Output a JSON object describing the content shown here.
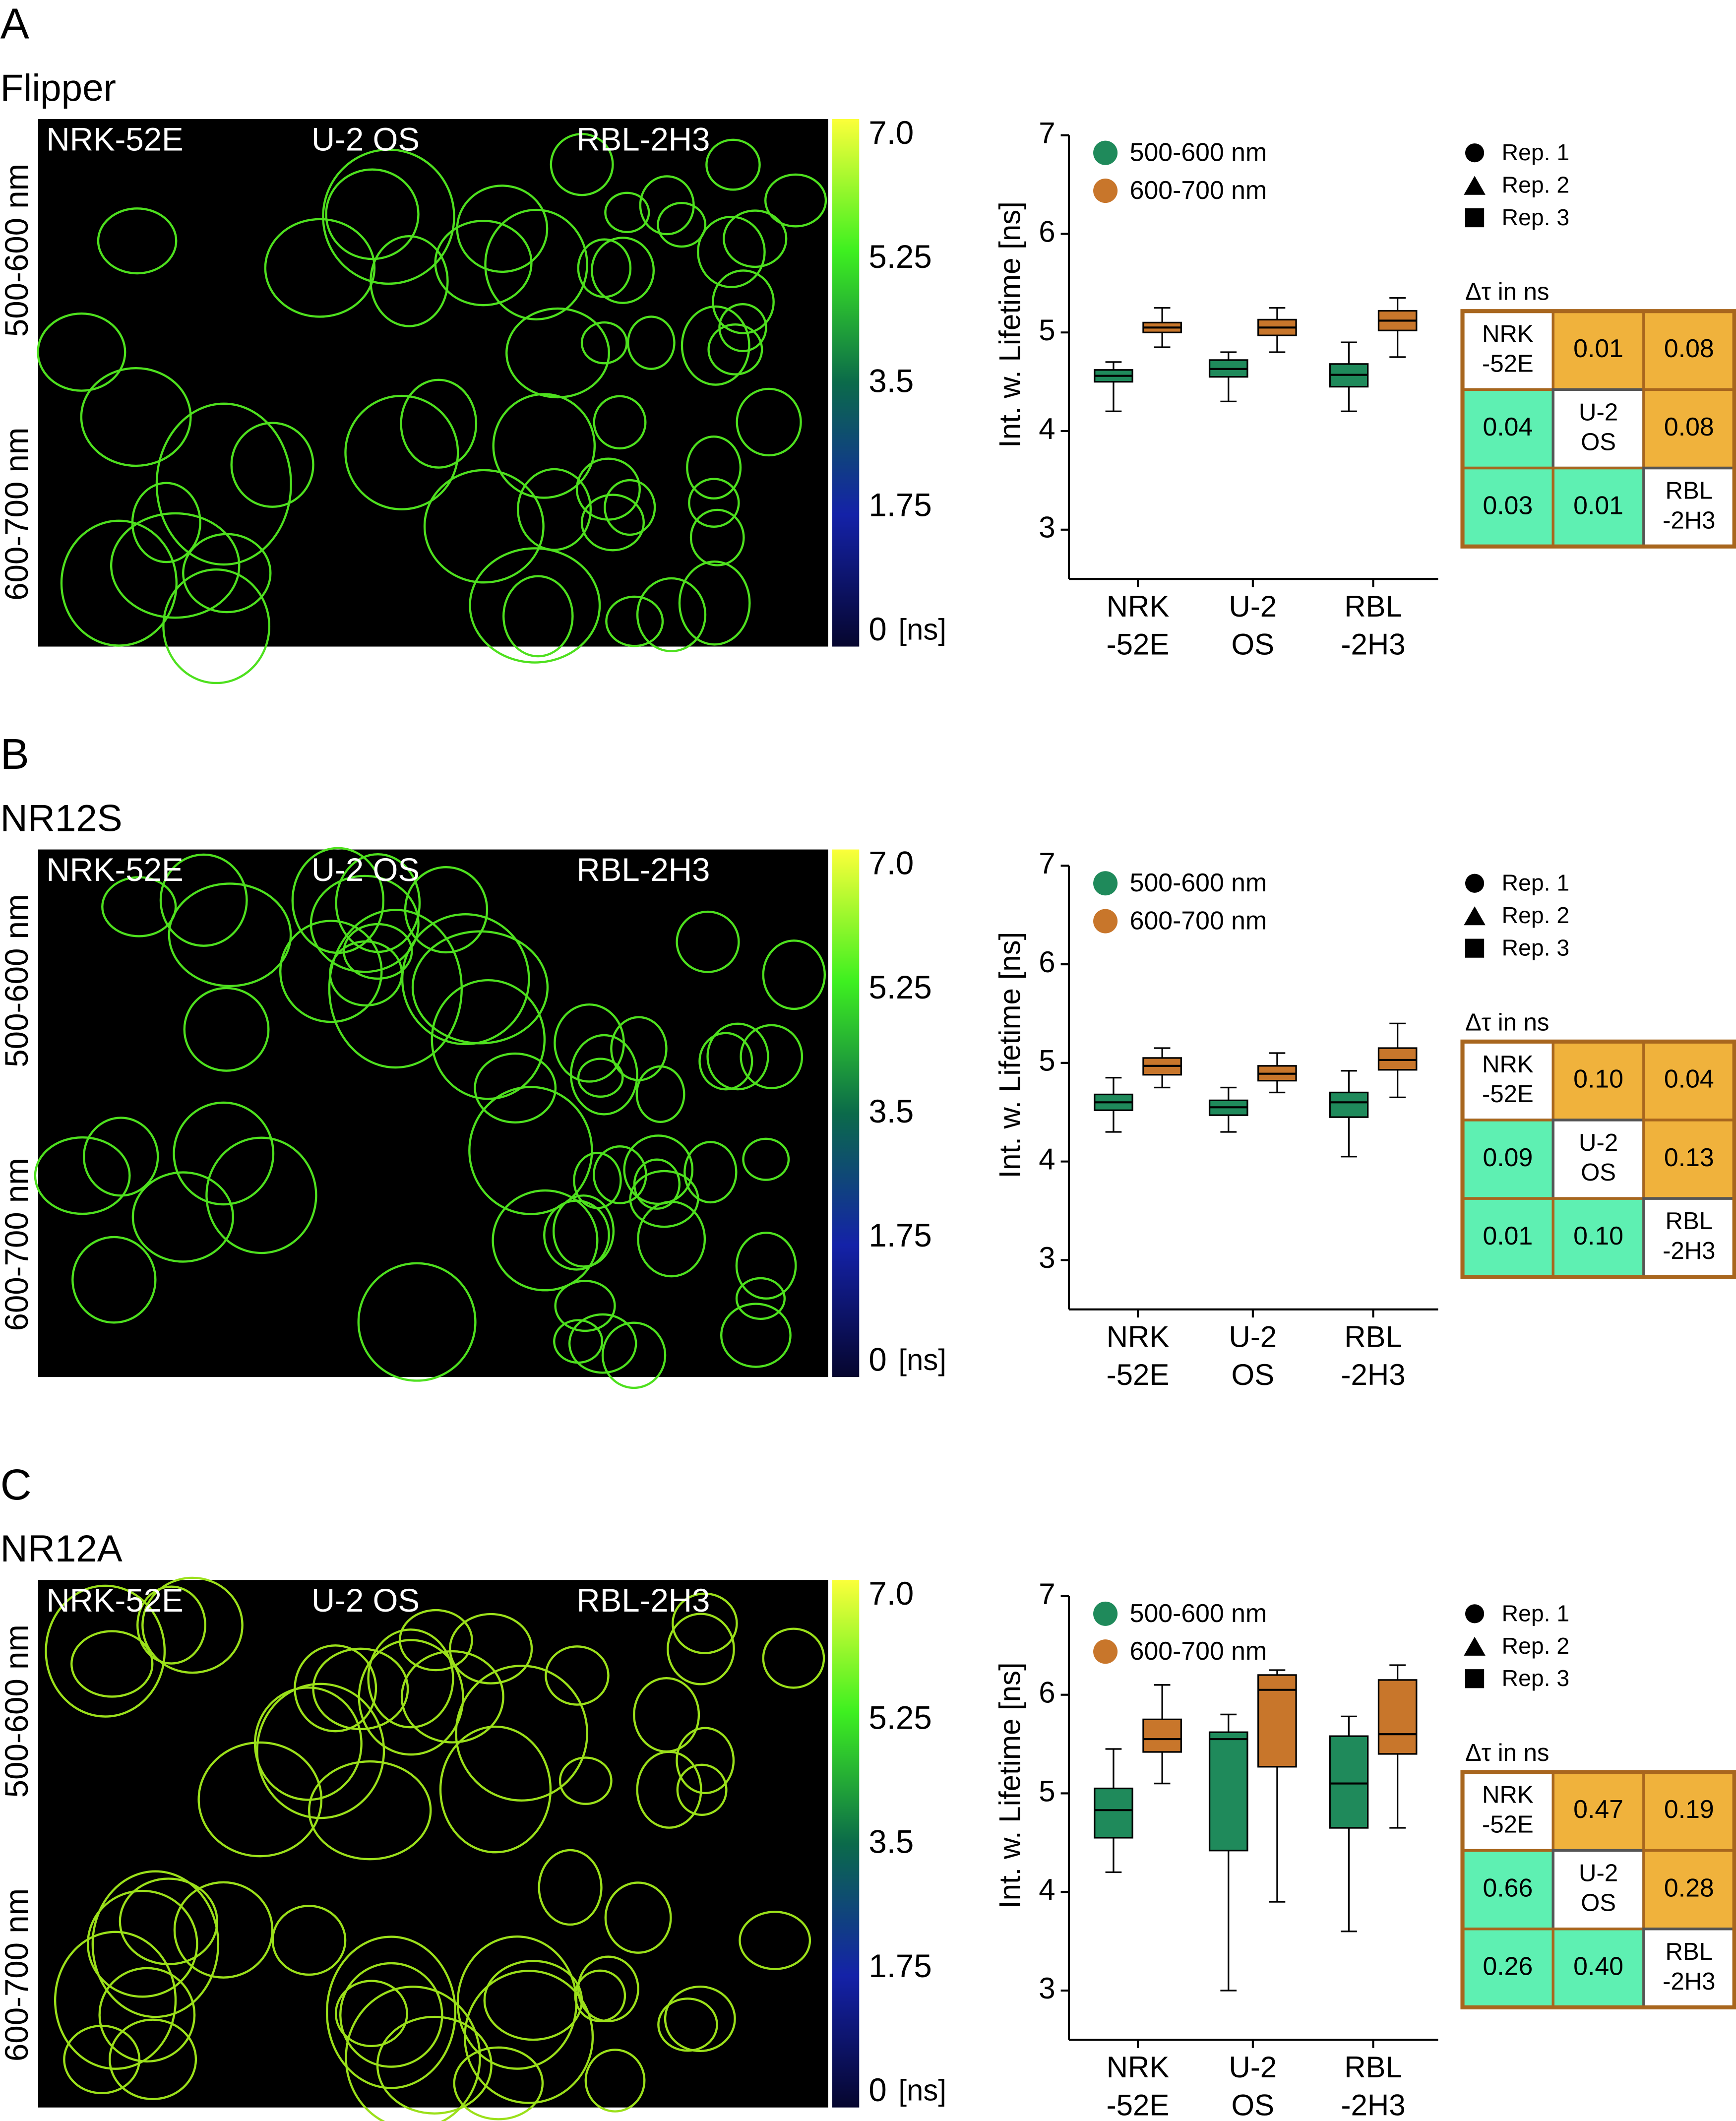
{
  "panels": [
    {
      "label": "A",
      "dye": "Flipper",
      "image": {
        "cell_lines": [
          "NRK-52E",
          "U-2 OS",
          "RBL-2H3"
        ],
        "rows": [
          "500-600 nm",
          "600-700 nm"
        ],
        "colorbar": {
          "ticks": [
            {
              "value": 7,
              "label": "7.0"
            },
            5.25,
            3.5,
            1.75,
            0
          ],
          "unit": "[ns]"
        }
      },
      "shape_legend": [
        "Rep. 1",
        "Rep. 2",
        "Rep. 3"
      ],
      "delta_tau": {
        "title": "Δτ in ns",
        "rows": [
          [
            [
              "NRK",
              "-52E"
            ],
            "0.01",
            "0.08"
          ],
          [
            "0.04",
            [
              "U-2",
              "OS"
            ],
            "0.08"
          ],
          [
            "0.03",
            "0.01",
            [
              "RBL",
              "-2H3"
            ]
          ]
        ]
      }
    },
    {
      "label": "B",
      "dye": "NR12S",
      "image": {
        "cell_lines": [
          "NRK-52E",
          "U-2 OS",
          "RBL-2H3"
        ],
        "rows": [
          "500-600 nm",
          "600-700 nm"
        ],
        "colorbar": {
          "ticks": [
            {
              "value": 7,
              "label": "7.0"
            },
            5.25,
            3.5,
            1.75,
            0
          ],
          "unit": "[ns]"
        }
      },
      "shape_legend": [
        "Rep. 1",
        "Rep. 2",
        "Rep. 3"
      ],
      "delta_tau": {
        "title": "Δτ in ns",
        "rows": [
          [
            [
              "NRK",
              "-52E"
            ],
            "0.10",
            "0.04"
          ],
          [
            "0.09",
            [
              "U-2",
              "OS"
            ],
            "0.13"
          ],
          [
            "0.01",
            "0.10",
            [
              "RBL",
              "-2H3"
            ]
          ]
        ]
      }
    },
    {
      "label": "C",
      "dye": "NR12A",
      "image": {
        "cell_lines": [
          "NRK-52E",
          "U-2 OS",
          "RBL-2H3"
        ],
        "rows": [
          "500-600 nm",
          "600-700 nm"
        ],
        "colorbar": {
          "ticks": [
            {
              "value": 7,
              "label": "7.0"
            },
            5.25,
            3.5,
            1.75,
            0
          ],
          "unit": "[ns]"
        }
      },
      "shape_legend": [
        "Rep. 1",
        "Rep. 2",
        "Rep. 3"
      ],
      "delta_tau": {
        "title": "Δτ in ns",
        "rows": [
          [
            [
              "NRK",
              "-52E"
            ],
            "0.47",
            "0.19"
          ],
          [
            "0.66",
            [
              "U-2",
              "OS"
            ],
            "0.28"
          ],
          [
            "0.26",
            "0.40",
            [
              "RBL",
              "-2H3"
            ]
          ]
        ]
      }
    }
  ],
  "chart_data": [
    {
      "type": "box",
      "y_label": "Int. w. Lifetime [ns]",
      "categories": [
        [
          "NRK",
          "-52E"
        ],
        [
          "U-2",
          "OS"
        ],
        [
          "RBL",
          "-2H3"
        ]
      ],
      "ylim": [
        2.5,
        7
      ],
      "yticks": [
        3,
        4,
        5,
        6,
        7
      ],
      "series": [
        {
          "name": "500-600 nm",
          "color": "#1f8a5b",
          "values": [
            {
              "min": 4.2,
              "q1": 4.5,
              "median": 4.56,
              "q3": 4.62,
              "max": 4.7
            },
            {
              "min": 4.3,
              "q1": 4.55,
              "median": 4.63,
              "q3": 4.72,
              "max": 4.8
            },
            {
              "min": 4.2,
              "q1": 4.45,
              "median": 4.57,
              "q3": 4.68,
              "max": 4.9
            }
          ]
        },
        {
          "name": "600-700 nm",
          "color": "#c8762b",
          "values": [
            {
              "min": 4.85,
              "q1": 5.0,
              "median": 5.05,
              "q3": 5.1,
              "max": 5.25
            },
            {
              "min": 4.8,
              "q1": 4.97,
              "median": 5.05,
              "q3": 5.13,
              "max": 5.25
            },
            {
              "min": 4.75,
              "q1": 5.02,
              "median": 5.12,
              "q3": 5.22,
              "max": 5.35
            }
          ]
        }
      ]
    },
    {
      "type": "box",
      "y_label": "Int. w. Lifetime [ns]",
      "categories": [
        [
          "NRK",
          "-52E"
        ],
        [
          "U-2",
          "OS"
        ],
        [
          "RBL",
          "-2H3"
        ]
      ],
      "ylim": [
        2.5,
        7
      ],
      "yticks": [
        3,
        4,
        5,
        6,
        7
      ],
      "series": [
        {
          "name": "500-600 nm",
          "color": "#1f8a5b",
          "values": [
            {
              "min": 4.3,
              "q1": 4.52,
              "median": 4.6,
              "q3": 4.68,
              "max": 4.85
            },
            {
              "min": 4.3,
              "q1": 4.47,
              "median": 4.55,
              "q3": 4.62,
              "max": 4.75
            },
            {
              "min": 4.05,
              "q1": 4.45,
              "median": 4.6,
              "q3": 4.7,
              "max": 4.92
            }
          ]
        },
        {
          "name": "600-700 nm",
          "color": "#c8762b",
          "values": [
            {
              "min": 4.75,
              "q1": 4.88,
              "median": 4.97,
              "q3": 5.05,
              "max": 5.15
            },
            {
              "min": 4.7,
              "q1": 4.82,
              "median": 4.89,
              "q3": 4.97,
              "max": 5.1
            },
            {
              "min": 4.65,
              "q1": 4.93,
              "median": 5.03,
              "q3": 5.15,
              "max": 5.4
            }
          ]
        }
      ]
    },
    {
      "type": "box",
      "y_label": "Int. w. Lifetime [ns]",
      "categories": [
        [
          "NRK",
          "-52E"
        ],
        [
          "U-2",
          "OS"
        ],
        [
          "RBL",
          "-2H3"
        ]
      ],
      "ylim": [
        2.5,
        7
      ],
      "yticks": [
        3,
        4,
        5,
        6,
        7
      ],
      "series": [
        {
          "name": "500-600 nm",
          "color": "#1f8a5b",
          "values": [
            {
              "min": 4.2,
              "q1": 4.55,
              "median": 4.83,
              "q3": 5.05,
              "max": 5.45
            },
            {
              "min": 3.0,
              "q1": 4.42,
              "median": 5.55,
              "q3": 5.62,
              "max": 5.8
            },
            {
              "min": 3.6,
              "q1": 4.65,
              "median": 5.1,
              "q3": 5.58,
              "max": 5.78
            }
          ]
        },
        {
          "name": "600-700 nm",
          "color": "#c8762b",
          "values": [
            {
              "min": 5.1,
              "q1": 5.42,
              "median": 5.55,
              "q3": 5.75,
              "max": 6.1
            },
            {
              "min": 3.9,
              "q1": 5.27,
              "median": 6.05,
              "q3": 6.2,
              "max": 6.25
            },
            {
              "min": 4.65,
              "q1": 5.4,
              "median": 5.6,
              "q3": 6.15,
              "max": 6.3
            }
          ]
        }
      ]
    }
  ]
}
